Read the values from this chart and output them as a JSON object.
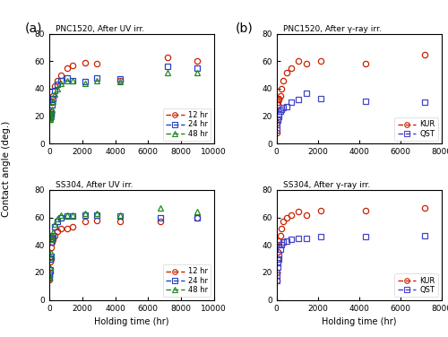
{
  "panel_labels": [
    "(a)",
    "(b)"
  ],
  "col_titles_a": [
    "PNC1520, After UV irr.",
    "SS304, After UV irr."
  ],
  "col_titles_b": [
    "PNC1520, After γ-ray irr.",
    "SS304, After γ-ray irr."
  ],
  "ylabel": "Contact angle (deg.)",
  "xlabel": "Holding time (hr)",
  "ylim": [
    0,
    80
  ],
  "xlim_a": [
    0,
    10000
  ],
  "xlim_b": [
    0,
    8000
  ],
  "pnc_uv_12hr_x": [
    24,
    48,
    72,
    96,
    120,
    168,
    240,
    336,
    480,
    720,
    1080,
    1440,
    2160,
    2880,
    4320,
    7200,
    9000
  ],
  "pnc_uv_12hr_y": [
    19,
    20,
    21,
    22,
    23,
    30,
    35,
    42,
    46,
    50,
    55,
    57,
    59,
    58,
    46,
    63,
    60
  ],
  "pnc_uv_24hr_x": [
    24,
    48,
    72,
    96,
    120,
    168,
    240,
    336,
    480,
    720,
    1080,
    1440,
    2160,
    2880,
    4320,
    7200,
    9000
  ],
  "pnc_uv_24hr_y": [
    18,
    19,
    20,
    21,
    22,
    28,
    33,
    39,
    43,
    46,
    48,
    46,
    45,
    48,
    47,
    56,
    55
  ],
  "pnc_uv_48hr_x": [
    24,
    48,
    72,
    96,
    120,
    168,
    240,
    336,
    480,
    720,
    1080,
    1440,
    2160,
    2880,
    4320,
    7200,
    9000
  ],
  "pnc_uv_48hr_y": [
    18,
    18,
    19,
    20,
    21,
    25,
    31,
    36,
    40,
    44,
    46,
    46,
    44,
    46,
    45,
    52,
    52
  ],
  "ss_uv_12hr_x": [
    12,
    24,
    48,
    72,
    96,
    120,
    168,
    240,
    336,
    480,
    720,
    1080,
    1440,
    2160,
    2880,
    4320,
    6720,
    9000
  ],
  "ss_uv_12hr_y": [
    15,
    17,
    20,
    28,
    30,
    38,
    42,
    44,
    47,
    50,
    52,
    52,
    53,
    57,
    58,
    57,
    57,
    60
  ],
  "ss_uv_24hr_x": [
    12,
    24,
    48,
    72,
    96,
    120,
    168,
    240,
    336,
    480,
    720,
    1080,
    1440,
    2160,
    2880,
    4320,
    6720,
    9000
  ],
  "ss_uv_24hr_y": [
    16,
    18,
    22,
    30,
    32,
    42,
    45,
    47,
    53,
    57,
    60,
    61,
    61,
    62,
    62,
    61,
    60,
    60
  ],
  "ss_uv_48hr_x": [
    12,
    24,
    48,
    72,
    96,
    120,
    168,
    240,
    336,
    480,
    720,
    1080,
    1440,
    2160,
    2880,
    4320,
    6720,
    9000
  ],
  "ss_uv_48hr_y": [
    16,
    18,
    23,
    31,
    34,
    44,
    46,
    49,
    55,
    59,
    62,
    62,
    62,
    63,
    63,
    62,
    67,
    64
  ],
  "pnc_gamma_kur_x": [
    12,
    24,
    48,
    72,
    96,
    120,
    168,
    240,
    336,
    480,
    720,
    1080,
    1440,
    2160,
    4320,
    7200
  ],
  "pnc_gamma_kur_y": [
    8,
    15,
    28,
    30,
    32,
    33,
    35,
    40,
    46,
    52,
    55,
    60,
    58,
    60,
    58,
    65
  ],
  "pnc_gamma_qst_x": [
    12,
    24,
    48,
    72,
    96,
    120,
    168,
    240,
    336,
    480,
    720,
    1080,
    1440,
    2160,
    4320,
    7200
  ],
  "pnc_gamma_qst_y": [
    10,
    14,
    17,
    18,
    20,
    22,
    24,
    25,
    26,
    27,
    30,
    32,
    37,
    33,
    31,
    30
  ],
  "ss_gamma_kur_x": [
    12,
    24,
    48,
    72,
    96,
    120,
    168,
    240,
    336,
    480,
    720,
    1080,
    1440,
    2160,
    4320,
    7200
  ],
  "ss_gamma_kur_y": [
    14,
    20,
    30,
    35,
    40,
    43,
    47,
    52,
    57,
    60,
    62,
    64,
    62,
    65,
    65,
    67
  ],
  "ss_gamma_qst_x": [
    12,
    24,
    48,
    72,
    96,
    120,
    168,
    240,
    336,
    480,
    720,
    1080,
    1440,
    2160,
    4320,
    7200
  ],
  "ss_gamma_qst_y": [
    14,
    18,
    24,
    27,
    30,
    33,
    37,
    40,
    42,
    43,
    44,
    45,
    45,
    46,
    46,
    47
  ],
  "color_12hr": "#cc2200",
  "color_24hr": "#2244cc",
  "color_48hr": "#228822",
  "color_kur": "#cc2200",
  "color_qst": "#4444cc",
  "xticks_a": [
    0,
    2000,
    4000,
    6000,
    8000,
    10000
  ],
  "xticks_b": [
    0,
    2000,
    4000,
    6000,
    8000
  ],
  "yticks": [
    0,
    20,
    40,
    60,
    80
  ]
}
